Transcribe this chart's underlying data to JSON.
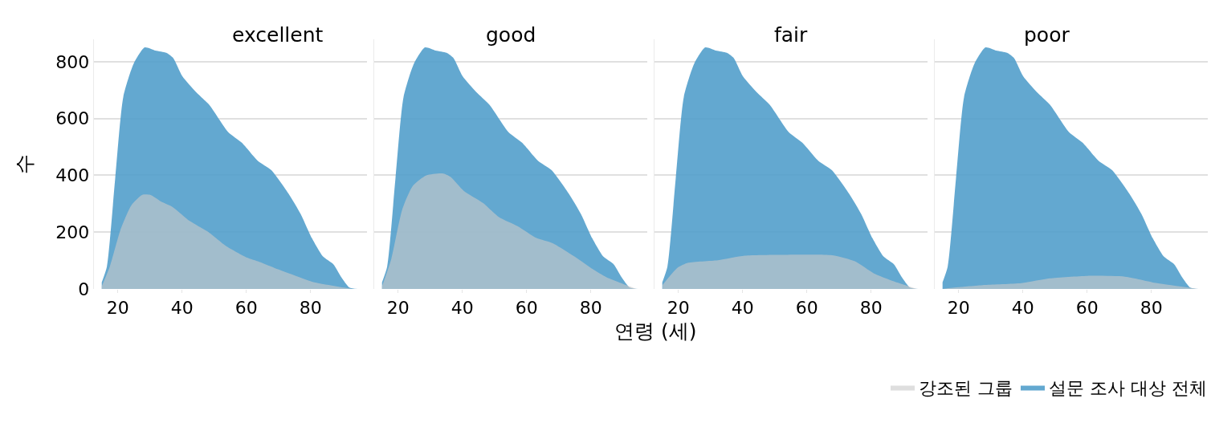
{
  "chart_data": [
    {
      "type": "area",
      "title": "excellent",
      "ylabel": "수",
      "xlim": [
        12.5,
        97.5
      ],
      "xticks": [
        20,
        40,
        60,
        80
      ],
      "ylim": [
        0,
        880
      ],
      "yticks": [
        0,
        200,
        400,
        600,
        800
      ],
      "grid": "y",
      "legend": "bottom right",
      "series": [
        {
          "name": "설문 조사 대상 전체",
          "color": "#529fcb",
          "x": [
            15,
            16.6,
            19.2,
            21.7,
            25,
            28.4,
            31.7,
            35.1,
            37.2,
            40.1,
            44.3,
            48.5,
            54.4,
            58.6,
            63.6,
            67.8,
            73.7,
            77,
            80.4,
            83.8,
            87.1,
            89.6,
            92.1,
            94.7
          ],
          "values": [
            23,
            78,
            391,
            676,
            795,
            851,
            840,
            832,
            814,
            749,
            694,
            648,
            552,
            515,
            451,
            418,
            326,
            262,
            179,
            115,
            87,
            41,
            5,
            0
          ]
        },
        {
          "name": "강조된 그룹",
          "color": "#c9c9c9",
          "x": [
            15,
            17.5,
            20.8,
            24.2,
            27.6,
            30.1,
            33.4,
            36.8,
            41.8,
            48.5,
            53.6,
            60.3,
            63.6,
            68.7,
            75.4,
            81.2,
            88,
            93
          ],
          "values": [
            9,
            78,
            207,
            294,
            331,
            331,
            308,
            290,
            244,
            198,
            152,
            110,
            97,
            74,
            46,
            23,
            9,
            0
          ]
        }
      ]
    },
    {
      "type": "area",
      "title": "good",
      "xlim": [
        12.5,
        97.5
      ],
      "xticks": [
        20,
        40,
        60,
        80
      ],
      "ylim": [
        0,
        880
      ],
      "yticks": [
        0,
        200,
        400,
        600,
        800
      ],
      "grid": "y",
      "tick_labels": "x",
      "series": [
        {
          "name": "설문 조사 대상 전체",
          "color": "#529fcb",
          "x": [
            15,
            16.6,
            19.2,
            21.7,
            25,
            28.4,
            31.7,
            35.1,
            37.2,
            40.1,
            44.3,
            48.5,
            54.4,
            58.6,
            63.6,
            67.8,
            73.7,
            77,
            80.4,
            83.8,
            87.1,
            89.6,
            92.1,
            94.7
          ],
          "values": [
            23,
            78,
            391,
            676,
            795,
            851,
            840,
            832,
            814,
            749,
            694,
            648,
            552,
            515,
            451,
            418,
            326,
            262,
            179,
            115,
            87,
            41,
            5,
            0
          ]
        },
        {
          "name": "강조된 그룹",
          "color": "#c9c9c9",
          "x": [
            15,
            17.9,
            21.3,
            24.6,
            28.8,
            33.8,
            36.3,
            40.5,
            46.4,
            51.4,
            57.2,
            63.1,
            68.1,
            74.8,
            80.7,
            84.9,
            89.9,
            94.1
          ],
          "values": [
            9,
            106,
            280,
            363,
            400,
            407,
            395,
            345,
            303,
            253,
            221,
            179,
            161,
            115,
            69,
            41,
            18,
            0
          ]
        }
      ]
    },
    {
      "type": "area",
      "title": "fair",
      "xlabel": "연령 (세)",
      "xlim": [
        12.5,
        97.5
      ],
      "xticks": [
        20,
        40,
        60,
        80
      ],
      "ylim": [
        0,
        880
      ],
      "yticks": [
        0,
        200,
        400,
        600,
        800
      ],
      "grid": "y",
      "tick_labels": "x",
      "series": [
        {
          "name": "설문 조사 대상 전체",
          "color": "#529fcb",
          "x": [
            15,
            16.6,
            19.2,
            21.7,
            25,
            28.4,
            31.7,
            35.1,
            37.2,
            40.1,
            44.3,
            48.5,
            54.4,
            58.6,
            63.6,
            67.8,
            73.7,
            77,
            80.4,
            83.8,
            87.1,
            89.6,
            92.1,
            94.7
          ],
          "values": [
            23,
            78,
            391,
            676,
            795,
            851,
            840,
            832,
            814,
            749,
            694,
            648,
            552,
            515,
            451,
            418,
            326,
            262,
            179,
            115,
            87,
            41,
            5,
            0
          ]
        },
        {
          "name": "강조된 그룹",
          "color": "#c9c9c9",
          "x": [
            15.1,
            19.7,
            23.1,
            32.3,
            40.7,
            51.6,
            68.3,
            75,
            80.8,
            86.7,
            94.2
          ],
          "values": [
            14,
            74,
            92,
            101,
            117,
            120,
            118,
            97,
            55,
            28,
            0
          ]
        }
      ]
    },
    {
      "type": "area",
      "title": "poor",
      "xlim": [
        12.5,
        97.5
      ],
      "xticks": [
        20,
        40,
        60,
        80
      ],
      "ylim": [
        0,
        880
      ],
      "yticks": [
        0,
        200,
        400,
        600,
        800
      ],
      "grid": "y",
      "tick_labels": "x",
      "series": [
        {
          "name": "설문 조사 대상 전체",
          "color": "#529fcb",
          "x": [
            15,
            16.6,
            19.2,
            21.7,
            25,
            28.4,
            31.7,
            35.1,
            37.2,
            40.1,
            44.3,
            48.5,
            54.4,
            58.6,
            63.6,
            67.8,
            73.7,
            77,
            80.4,
            83.8,
            87.1,
            89.6,
            92.1,
            94.7
          ],
          "values": [
            23,
            78,
            391,
            676,
            795,
            851,
            840,
            832,
            814,
            749,
            694,
            648,
            552,
            515,
            451,
            418,
            326,
            262,
            179,
            115,
            87,
            41,
            5,
            0
          ]
        },
        {
          "name": "강조된 그룹",
          "color": "#c9c9c9",
          "x": [
            15,
            20,
            28.3,
            40,
            48.4,
            60.1,
            71.8,
            81.8,
            94.3
          ],
          "values": [
            0,
            6,
            14,
            21,
            37,
            46,
            43,
            20,
            0
          ]
        }
      ]
    }
  ]
}
